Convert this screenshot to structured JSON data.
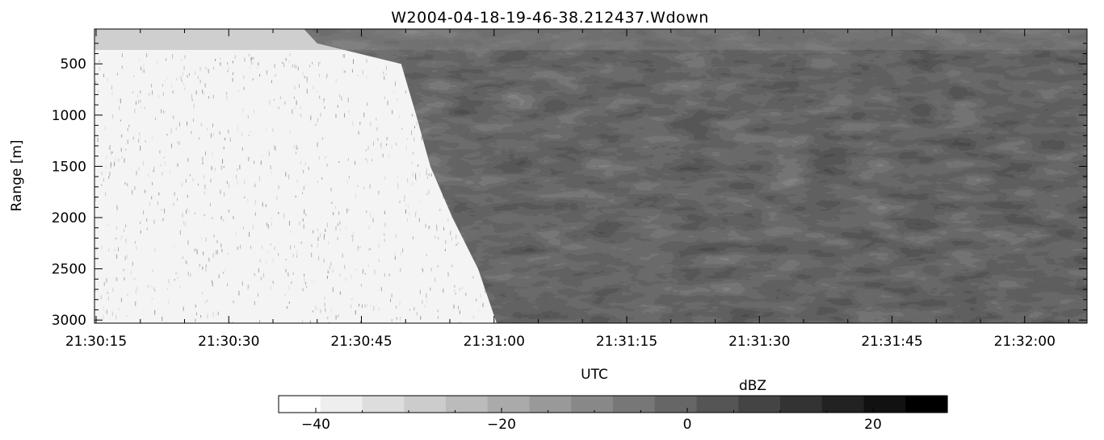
{
  "chart_data": {
    "type": "heatmap",
    "title": "W2004-04-18-19-46-38.212437.Wdown",
    "xlabel": "UTC",
    "ylabel": "Range [m]",
    "x_ticks": [
      "21:30:15",
      "21:30:30",
      "21:30:45",
      "21:31:00",
      "21:31:15",
      "21:31:30",
      "21:31:45",
      "21:32:00"
    ],
    "x_tick_seconds": [
      0,
      15,
      30,
      45,
      60,
      75,
      90,
      105
    ],
    "x_range_seconds": [
      0,
      112
    ],
    "y_ticks": [
      500,
      1000,
      1500,
      2000,
      2500,
      3000
    ],
    "y_range": [
      160,
      3030
    ],
    "y_reversed": true,
    "colorscale": "grayscale, white = low, black = high",
    "colorbar": {
      "label": "dBZ",
      "range": [
        -44,
        28
      ],
      "ticks": [
        -40,
        -20,
        0,
        20
      ],
      "levels": 16
    },
    "cloud_boundary": [
      {
        "range": 160,
        "time_s": 23.5
      },
      {
        "range": 300,
        "time_s": 25
      },
      {
        "range": 500,
        "time_s": 34.5
      },
      {
        "range": 1000,
        "time_s": 36.2
      },
      {
        "range": 1500,
        "time_s": 37.8
      },
      {
        "range": 2000,
        "time_s": 40.3
      },
      {
        "range": 2500,
        "time_s": 43.2
      },
      {
        "range": 3030,
        "time_s": 45.3
      }
    ]
  }
}
